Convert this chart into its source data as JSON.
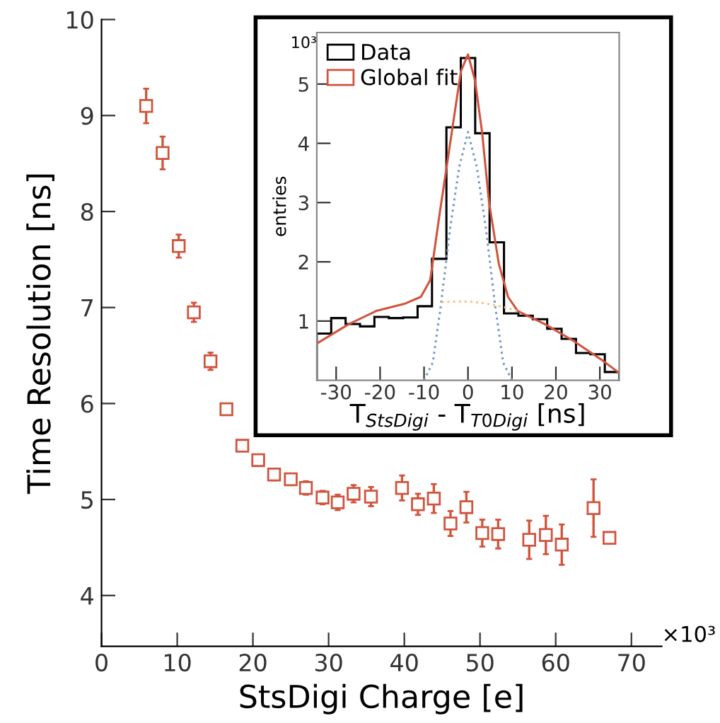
{
  "chart_data": [
    {
      "type": "scatter",
      "xlabel": "StsDigi Charge [e]",
      "ylabel": "Time Resolution [ns]",
      "x": [
        5.9,
        8.07,
        10.2,
        12.2,
        14.4,
        16.5,
        18.6,
        20.7,
        22.8,
        25.0,
        27.0,
        29.2,
        31.2,
        33.3,
        35.6,
        39.7,
        41.8,
        43.9,
        46.1,
        48.2,
        50.3,
        52.4,
        56.5,
        58.7,
        60.8,
        65.0,
        67.1
      ],
      "series": [
        {
          "color": "#d0543e",
          "values": [
            9.1,
            8.61,
            7.64,
            6.95,
            6.44,
            5.94,
            5.56,
            5.41,
            5.26,
            5.21,
            5.12,
            5.02,
            4.97,
            5.06,
            5.03,
            5.12,
            4.95,
            5.01,
            4.75,
            4.92,
            4.65,
            4.64,
            4.58,
            4.63,
            4.53,
            4.91,
            4.6
          ],
          "errors": [
            0.18,
            0.17,
            0.12,
            0.1,
            0.09,
            0.06,
            0.05,
            0.05,
            0.06,
            0.06,
            0.07,
            0.07,
            0.08,
            0.09,
            0.1,
            0.13,
            0.11,
            0.15,
            0.13,
            0.16,
            0.14,
            0.15,
            0.2,
            0.2,
            0.21,
            0.3,
            0.02
          ]
        }
      ],
      "marker": "square",
      "xlim": [
        0,
        74
      ],
      "ylim": [
        3.47,
        10
      ],
      "xticks": [
        0,
        10,
        20,
        30,
        40,
        50,
        60,
        70
      ],
      "yticks": [
        4,
        5,
        6,
        7,
        8,
        9,
        10
      ],
      "annotations": [
        "×10³"
      ],
      "grid": false,
      "legend": false
    },
    {
      "type": "histogram",
      "xlabel": "T$_{StsDigi}$ - T$_{T0Digi}$ [ns]",
      "ylabel": "entries",
      "bins": [
        -34.4,
        -31.124,
        -27.848,
        -24.571,
        -21.295,
        -18.019,
        -14.743,
        -11.467,
        -8.19,
        -4.914,
        -1.638,
        1.638,
        4.914,
        8.19,
        11.467,
        14.743,
        18.019,
        21.295,
        24.571,
        27.848,
        31.124,
        34.4
      ],
      "series": [
        {
          "name": "Data",
          "type": "histogram",
          "color": "#000000",
          "values": [
            0.79,
            1.05,
            0.95,
            0.91,
            1.07,
            1.05,
            1.06,
            1.25,
            2.05,
            4.27,
            5.44,
            4.17,
            2.33,
            1.13,
            1.09,
            1.03,
            0.87,
            0.7,
            0.46,
            0.44,
            0.14
          ]
        },
        {
          "name": "Global fit",
          "type": "line",
          "color": "#d0543e",
          "line_style": "solid",
          "x": [
            -34.4,
            -27.3,
            -20.9,
            -14.5,
            -10.7,
            -8.6,
            -6.4,
            -4.8,
            -3.2,
            -1.6,
            0,
            1.6,
            3.2,
            4.8,
            7.0,
            9.1,
            11.3,
            17.7,
            24.1,
            30.5,
            34.3
          ],
          "values": [
            0.62,
            0.94,
            1.17,
            1.29,
            1.41,
            1.69,
            2.84,
            3.63,
            4.43,
            5.22,
            5.5,
            5.06,
            4.19,
            3.0,
            1.97,
            1.41,
            1.17,
            0.94,
            0.66,
            0.34,
            0.13
          ]
        },
        {
          "type": "line",
          "color": "#7b9cc4",
          "line_style": "dotted",
          "x": [
            -10,
            -8,
            -6.2,
            -4,
            -2,
            0,
            2,
            4,
            6.2,
            8,
            10
          ],
          "values": [
            0.0,
            0.3,
            1.25,
            2.6,
            3.6,
            4.19,
            3.6,
            2.6,
            1.25,
            0.3,
            0.0
          ]
        },
        {
          "type": "line",
          "color": "#f2c48a",
          "line_style": "dotted",
          "x": [
            -6,
            -3,
            0,
            3,
            6,
            9,
            12
          ],
          "values": [
            1.32,
            1.33,
            1.33,
            1.31,
            1.27,
            1.22,
            1.15
          ]
        }
      ],
      "xlim": [
        -34.4,
        34.4
      ],
      "ylim": [
        0,
        5.87
      ],
      "xticks": [
        -30,
        -20,
        -10,
        0,
        10,
        20,
        30
      ],
      "yticks": [
        1,
        2,
        3,
        4,
        5
      ],
      "annotations": [
        "10³"
      ],
      "legend": "top left",
      "grid": false
    }
  ]
}
